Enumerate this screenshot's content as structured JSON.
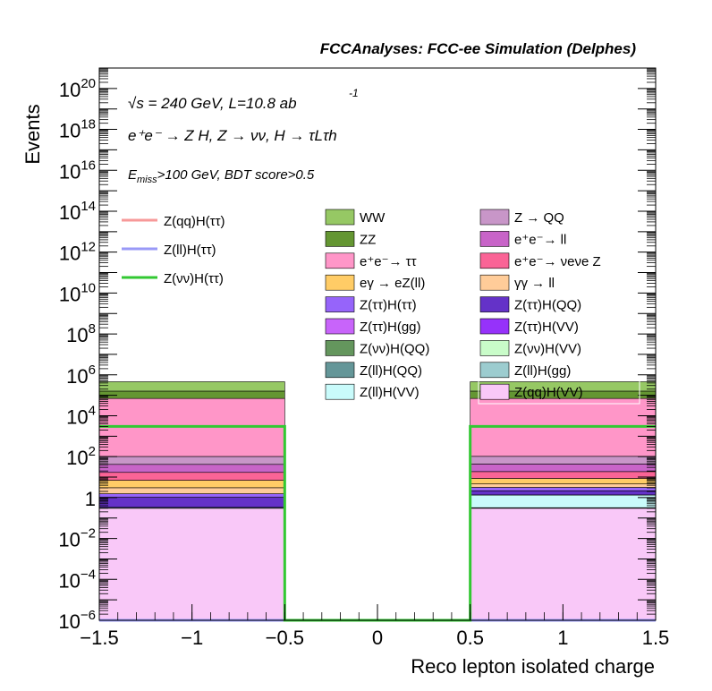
{
  "chart_data": {
    "type": "bar",
    "title": "FCCAnalyses: FCC-ee Simulation (Delphes)",
    "xlabel": "Reco lepton isolated charge",
    "ylabel": "Events",
    "xlim": [
      -1.5,
      1.5
    ],
    "ylim": [
      1e-06,
      1e+21
    ],
    "log_y": true,
    "x_ticks": [
      "−1.5",
      "−1",
      "−0.5",
      "0",
      "0.5",
      "1",
      "1.5"
    ],
    "annotations": {
      "energy": "√s = 240 GeV, L=10.8 ab",
      "energy_exp": "-1",
      "process": "e⁺e⁻ → Z H, Z → νν, H → τLτh",
      "cut_prefix": "E",
      "cut_sub": "miss",
      "cut_rest": ">100 GeV, BDT score>0.5"
    },
    "bins": [
      [
        -1.5,
        -0.5
      ],
      [
        0.5,
        1.5
      ]
    ],
    "stack": [
      {
        "name": "Z(qq)H(VV)",
        "color": "#f9c8f8",
        "values": [
          0.3,
          0.3
        ]
      },
      {
        "name": "Z(ll)H(gg)",
        "color": "#9ccccf",
        "values": [
          0.0,
          0.02
        ]
      },
      {
        "name": "Z(ll)H(VV)",
        "color": "#c9fbfb",
        "values": [
          0.0,
          1.0
        ]
      },
      {
        "name": "Z(ll)H(QQ)",
        "color": "#649698",
        "values": [
          0.03,
          0.0
        ]
      },
      {
        "name": "Z(νν)H(VV)",
        "color": "#c9fcc9",
        "values": [
          0.0,
          0.0
        ]
      },
      {
        "name": "Z(νν)H(QQ)",
        "color": "#64965d",
        "values": [
          0.0,
          0.0
        ]
      },
      {
        "name": "Z(ττ)H(VV)",
        "color": "#9632fa",
        "values": [
          0.0,
          0.0
        ]
      },
      {
        "name": "Z(ττ)H(gg)",
        "color": "#c864fa",
        "values": [
          0.003,
          0.03
        ]
      },
      {
        "name": "Z(ττ)H(QQ)",
        "color": "#6432c8",
        "values": [
          0.7,
          0.8
        ]
      },
      {
        "name": "Z(ττ)H(ττ)",
        "color": "#9664fa",
        "values": [
          0.5,
          1.0
        ]
      },
      {
        "name": "γγ → ll",
        "color": "#ffcc99",
        "values": [
          1.5,
          1.5
        ]
      },
      {
        "name": "eγ → eZ(ll)",
        "color": "#ffcc66",
        "values": [
          4,
          4
        ]
      },
      {
        "name": "e⁺e⁻→ νeνe Z",
        "color": "#fa6496",
        "values": [
          10,
          10
        ]
      },
      {
        "name": "e⁺e⁻→ ll",
        "color": "#c864c8",
        "values": [
          25,
          25
        ]
      },
      {
        "name": "Z → QQ",
        "color": "#c896c8",
        "values": [
          60,
          60
        ]
      },
      {
        "name": "e⁺e⁻→ ττ",
        "color": "#ff96c8",
        "values": [
          70000,
          70000
        ]
      },
      {
        "name": "ZZ",
        "color": "#649632",
        "values": [
          90000,
          90000
        ]
      },
      {
        "name": "WW",
        "color": "#96c864",
        "values": [
          300000,
          300000
        ]
      }
    ],
    "signal_lines": [
      {
        "name": "Z(qq)H(ττ)",
        "color": "#f79999",
        "values": [
          0,
          0
        ]
      },
      {
        "name": "Z(ll)H(ττ)",
        "color": "#9999f7",
        "values": [
          0,
          0
        ]
      },
      {
        "name": "Z(νν)H(ττ)",
        "color": "#32c832",
        "values": [
          3000,
          3000
        ]
      }
    ],
    "legend_lines": [
      "Z(qq)H(ττ)",
      "Z(ll)H(ττ)",
      "Z(νν)H(ττ)"
    ],
    "legend_col1": [
      {
        "name": "WW",
        "color": "#96c864"
      },
      {
        "name": "ZZ",
        "color": "#649632"
      },
      {
        "name": "e⁺e⁻→ ττ",
        "color": "#ff96c8"
      },
      {
        "name": "eγ → eZ(ll)",
        "color": "#ffcc66"
      },
      {
        "name": "Z(ττ)H(ττ)",
        "color": "#9664fa"
      },
      {
        "name": "Z(ττ)H(gg)",
        "color": "#c864fa"
      },
      {
        "name": "Z(νν)H(QQ)",
        "color": "#64965d"
      },
      {
        "name": "Z(ll)H(QQ)",
        "color": "#649698"
      },
      {
        "name": "Z(ll)H(VV)",
        "color": "#c9fbfb"
      }
    ],
    "legend_col2": [
      {
        "name": "Z → QQ",
        "color": "#c896c8"
      },
      {
        "name": "e⁺e⁻→ ll",
        "color": "#c864c8"
      },
      {
        "name": "e⁺e⁻→ νeνe Z",
        "color": "#fa6496"
      },
      {
        "name": "γγ → ll",
        "color": "#ffcc99"
      },
      {
        "name": "Z(ττ)H(QQ)",
        "color": "#6432c8"
      },
      {
        "name": "Z(ττ)H(VV)",
        "color": "#9632fa"
      },
      {
        "name": "Z(νν)H(VV)",
        "color": "#c9fcc9"
      },
      {
        "name": "Z(ll)H(gg)",
        "color": "#9ccccf"
      },
      {
        "name": "Z(qq)H(VV)",
        "color": "#f9c8f8"
      }
    ]
  }
}
